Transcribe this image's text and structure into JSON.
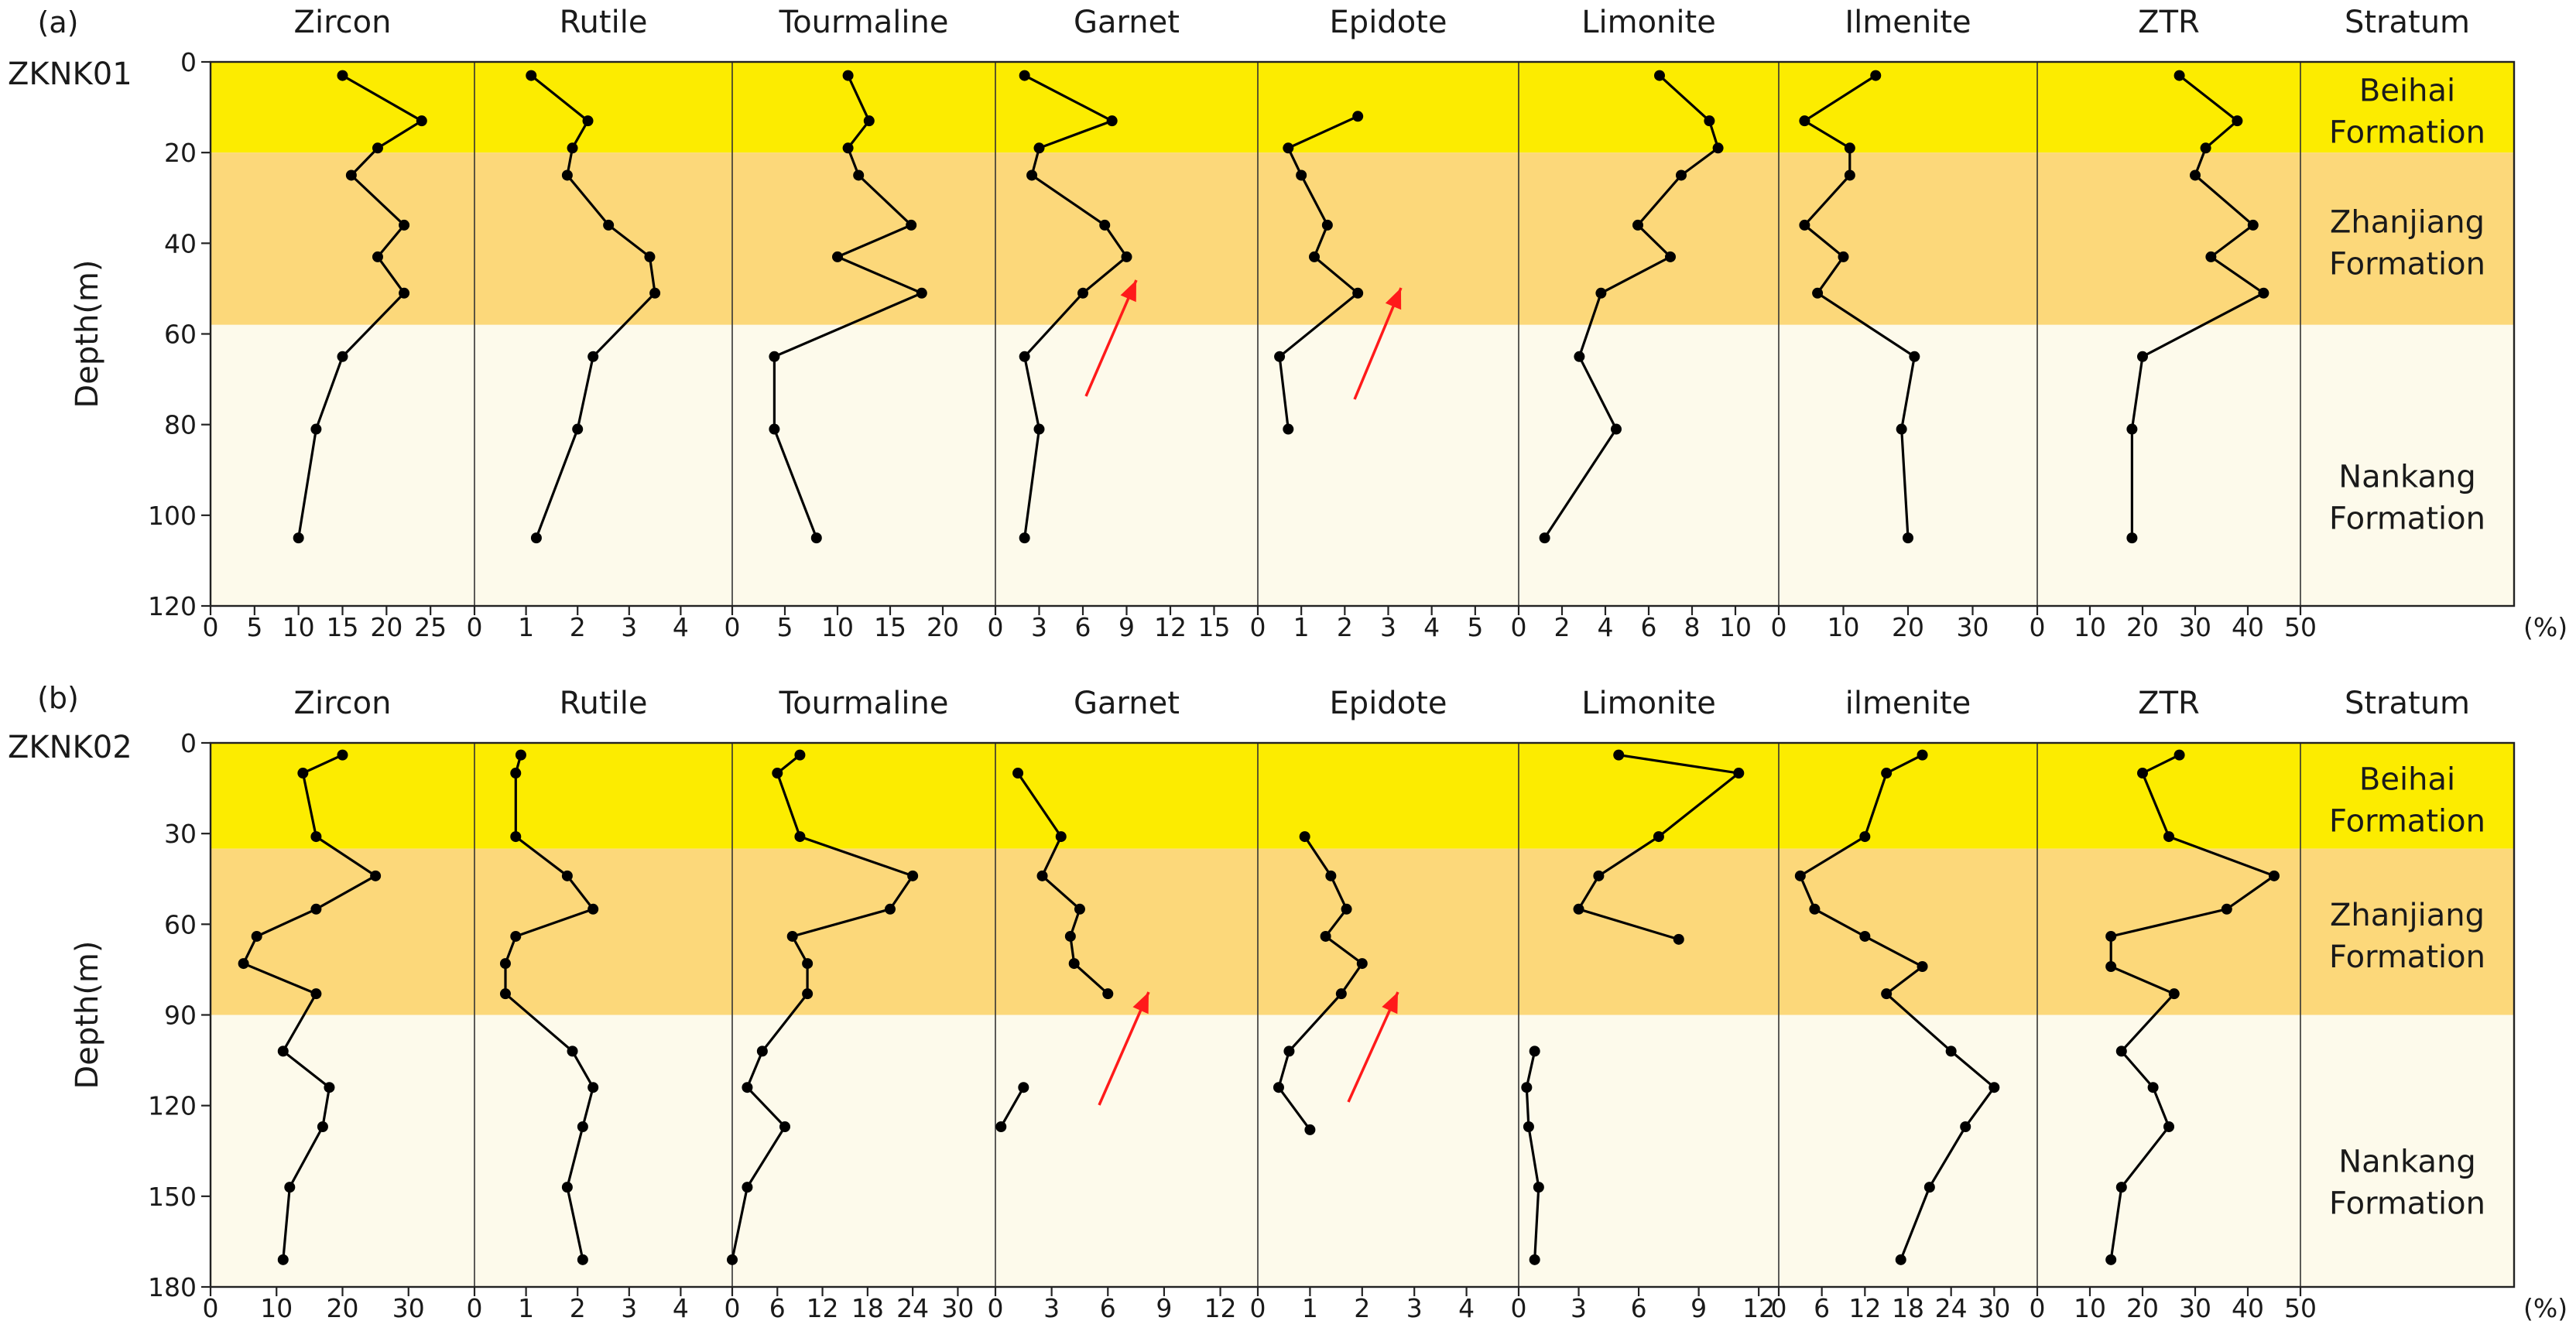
{
  "chart_data": [
    {
      "type": "line",
      "panel_label": "(a)",
      "well": "ZKNK01",
      "ylabel": "Depth(m)",
      "y_ticks": [
        0,
        20,
        40,
        60,
        80,
        100,
        120
      ],
      "ylim": [
        0,
        120
      ],
      "y_inverted": true,
      "unit_label": "(%)",
      "strata": [
        {
          "name_lines": [
            "Beihai",
            "Formation"
          ],
          "top": 0,
          "bottom": 20,
          "color": "#fcec00"
        },
        {
          "name_lines": [
            "Zhanjiang",
            "Formation"
          ],
          "top": 20,
          "bottom": 58,
          "color": "#fcd87a"
        },
        {
          "name_lines": [
            "Nankang",
            "Formation"
          ],
          "top": 58,
          "bottom": 120,
          "color": "#fdfaeb"
        }
      ],
      "stratum_header": "Stratum",
      "series": [
        {
          "name": "Zircon",
          "xlim": [
            0,
            30
          ],
          "x_ticks": [
            0,
            5,
            10,
            15,
            20,
            25
          ],
          "points": [
            [
              15,
              3
            ],
            [
              24,
              13
            ],
            [
              19,
              19
            ],
            [
              16,
              25
            ],
            [
              22,
              36
            ],
            [
              19,
              43
            ],
            [
              22,
              51
            ],
            [
              15,
              65
            ],
            [
              12,
              81
            ],
            [
              10,
              105
            ]
          ]
        },
        {
          "name": "Rutile",
          "xlim": [
            0,
            5
          ],
          "x_ticks": [
            0,
            1,
            2,
            3,
            4
          ],
          "points": [
            [
              1.1,
              3
            ],
            [
              2.2,
              13
            ],
            [
              1.9,
              19
            ],
            [
              1.8,
              25
            ],
            [
              2.6,
              36
            ],
            [
              3.4,
              43
            ],
            [
              3.5,
              51
            ],
            [
              2.3,
              65
            ],
            [
              2.0,
              81
            ],
            [
              1.2,
              105
            ]
          ]
        },
        {
          "name": "Tourmaline",
          "xlim": [
            0,
            25
          ],
          "x_ticks": [
            0,
            5,
            10,
            15,
            20
          ],
          "points": [
            [
              11,
              3
            ],
            [
              13,
              13
            ],
            [
              11,
              19
            ],
            [
              12,
              25
            ],
            [
              17,
              36
            ],
            [
              10,
              43
            ],
            [
              18,
              51
            ],
            [
              4,
              65
            ],
            [
              4,
              81
            ],
            [
              8,
              105
            ]
          ]
        },
        {
          "name": "Garnet",
          "xlim": [
            0,
            18
          ],
          "x_ticks": [
            0,
            3,
            6,
            9,
            12,
            15
          ],
          "points": [
            [
              2,
              3
            ],
            [
              8,
              13
            ],
            [
              3,
              19
            ],
            [
              2.5,
              25
            ],
            [
              7.5,
              36
            ],
            [
              9,
              43
            ],
            [
              6,
              51
            ],
            [
              2,
              65
            ],
            [
              3,
              81
            ],
            [
              2,
              105
            ]
          ]
        },
        {
          "name": "Epidote",
          "xlim": [
            0,
            6
          ],
          "x_ticks": [
            0,
            1,
            2,
            3,
            4,
            5
          ],
          "points": [
            [
              2.3,
              12
            ],
            [
              0.7,
              19
            ],
            [
              1,
              25
            ],
            [
              1.6,
              36
            ],
            [
              1.3,
              43
            ],
            [
              2.3,
              51
            ],
            [
              0.5,
              65
            ],
            [
              0.7,
              81
            ]
          ]
        },
        {
          "name": "Limonite",
          "xlim": [
            0,
            12
          ],
          "x_ticks": [
            0,
            2,
            4,
            6,
            8,
            10
          ],
          "points": [
            [
              6.5,
              3
            ],
            [
              8.8,
              13
            ],
            [
              9.2,
              19
            ],
            [
              7.5,
              25
            ],
            [
              5.5,
              36
            ],
            [
              7,
              43
            ],
            [
              3.8,
              51
            ],
            [
              2.8,
              65
            ],
            [
              4.5,
              81
            ],
            [
              1.2,
              105
            ]
          ]
        },
        {
          "name": "Ilmenite",
          "xlim": [
            0,
            40
          ],
          "x_ticks": [
            0,
            10,
            20,
            30
          ],
          "points": [
            [
              15,
              3
            ],
            [
              4,
              13
            ],
            [
              11,
              19
            ],
            [
              11,
              25
            ],
            [
              4,
              36
            ],
            [
              10,
              43
            ],
            [
              6,
              51
            ],
            [
              21,
              65
            ],
            [
              19,
              81
            ],
            [
              20,
              105
            ]
          ]
        },
        {
          "name": "ZTR",
          "xlim": [
            0,
            50
          ],
          "x_ticks": [
            0,
            10,
            20,
            30,
            40,
            50
          ],
          "points": [
            [
              27,
              3
            ],
            [
              38,
              13
            ],
            [
              32,
              19
            ],
            [
              30,
              25
            ],
            [
              41,
              36
            ],
            [
              33,
              43
            ],
            [
              43,
              51
            ],
            [
              20,
              65
            ],
            [
              18,
              81
            ],
            [
              18,
              105
            ]
          ]
        }
      ]
    },
    {
      "type": "line",
      "panel_label": "(b)",
      "well": "ZKNK02",
      "ylabel": "Depth(m)",
      "y_ticks": [
        0,
        30,
        60,
        90,
        120,
        150,
        180
      ],
      "ylim": [
        0,
        180
      ],
      "y_inverted": true,
      "unit_label": "(%)",
      "strata": [
        {
          "name_lines": [
            "Beihai",
            "Formation"
          ],
          "top": 0,
          "bottom": 35,
          "color": "#fcec00"
        },
        {
          "name_lines": [
            "Zhanjiang",
            "Formation"
          ],
          "top": 35,
          "bottom": 90,
          "color": "#fcd87a"
        },
        {
          "name_lines": [
            "Nankang",
            "Formation"
          ],
          "top": 90,
          "bottom": 180,
          "color": "#fdfaeb"
        }
      ],
      "stratum_header": "Stratum",
      "series": [
        {
          "name": "Zircon",
          "xlim": [
            0,
            40
          ],
          "x_ticks": [
            0,
            10,
            20,
            30
          ],
          "points": [
            [
              20,
              4
            ],
            [
              14,
              10
            ],
            [
              16,
              31
            ],
            [
              25,
              44
            ],
            [
              16,
              55
            ],
            [
              7,
              64
            ],
            [
              5,
              73
            ],
            [
              16,
              83
            ],
            [
              11,
              102
            ],
            [
              18,
              114
            ],
            [
              17,
              127
            ],
            [
              12,
              147
            ],
            [
              11,
              171
            ]
          ]
        },
        {
          "name": "Rutile",
          "xlim": [
            0,
            5
          ],
          "x_ticks": [
            0,
            1,
            2,
            3,
            4
          ],
          "points": [
            [
              0.9,
              4
            ],
            [
              0.8,
              10
            ],
            [
              0.8,
              31
            ],
            [
              1.8,
              44
            ],
            [
              2.3,
              55
            ],
            [
              0.8,
              64
            ],
            [
              0.6,
              73
            ],
            [
              0.6,
              83
            ],
            [
              1.9,
              102
            ],
            [
              2.3,
              114
            ],
            [
              2.1,
              127
            ],
            [
              1.8,
              147
            ],
            [
              2.1,
              171
            ]
          ]
        },
        {
          "name": "Tourmaline",
          "xlim": [
            0,
            35
          ],
          "x_ticks": [
            0,
            6,
            12,
            18,
            24,
            30
          ],
          "points": [
            [
              9,
              4
            ],
            [
              6,
              10
            ],
            [
              9,
              31
            ],
            [
              24,
              44
            ],
            [
              21,
              55
            ],
            [
              8,
              64
            ],
            [
              10,
              73
            ],
            [
              10,
              83
            ],
            [
              4,
              102
            ],
            [
              2,
              114
            ],
            [
              7,
              127
            ],
            [
              2,
              147
            ],
            [
              0,
              171
            ]
          ]
        },
        {
          "name": "Garnet",
          "xlim": [
            0,
            14
          ],
          "x_ticks": [
            0,
            3,
            6,
            9,
            12
          ],
          "points": [
            [
              1.2,
              10
            ],
            [
              3.5,
              31
            ],
            [
              2.5,
              44
            ],
            [
              4.5,
              55
            ],
            [
              4,
              64
            ],
            [
              4.2,
              73
            ],
            [
              6,
              83
            ]
          ],
          "points_b": [
            [
              1.5,
              114
            ],
            [
              0.3,
              127
            ]
          ]
        },
        {
          "name": "Epidote",
          "xlim": [
            0,
            5
          ],
          "x_ticks": [
            0,
            1,
            2,
            3,
            4
          ],
          "points": [
            [
              0.9,
              31
            ],
            [
              1.4,
              44
            ],
            [
              1.7,
              55
            ],
            [
              1.3,
              64
            ],
            [
              2,
              73
            ],
            [
              1.6,
              83
            ],
            [
              0.6,
              102
            ],
            [
              0.4,
              114
            ],
            [
              1,
              128
            ]
          ]
        },
        {
          "name": "Limonite",
          "xlim": [
            0,
            13
          ],
          "x_ticks": [
            0,
            3,
            6,
            9,
            12
          ],
          "points": [
            [
              5,
              4
            ],
            [
              11,
              10
            ],
            [
              7,
              31
            ],
            [
              4,
              44
            ],
            [
              3,
              55
            ],
            [
              8,
              65
            ]
          ],
          "points_b": [
            [
              0.8,
              102
            ],
            [
              0.4,
              114
            ],
            [
              0.5,
              127
            ],
            [
              1,
              147
            ],
            [
              0.8,
              171
            ]
          ]
        },
        {
          "name": "ilmenite",
          "xlim": [
            0,
            36
          ],
          "x_ticks": [
            0,
            6,
            12,
            18,
            24,
            30
          ],
          "points": [
            [
              20,
              4
            ],
            [
              15,
              10
            ],
            [
              12,
              31
            ],
            [
              3,
              44
            ],
            [
              5,
              55
            ],
            [
              12,
              64
            ],
            [
              20,
              74
            ],
            [
              15,
              83
            ],
            [
              24,
              102
            ],
            [
              30,
              114
            ],
            [
              26,
              127
            ],
            [
              21,
              147
            ],
            [
              17,
              171
            ]
          ]
        },
        {
          "name": "ZTR",
          "xlim": [
            0,
            50
          ],
          "x_ticks": [
            0,
            10,
            20,
            30,
            40,
            50
          ],
          "points": [
            [
              27,
              4
            ],
            [
              20,
              10
            ],
            [
              25,
              31
            ],
            [
              45,
              44
            ],
            [
              36,
              55
            ],
            [
              14,
              64
            ],
            [
              14,
              74
            ],
            [
              26,
              83
            ],
            [
              16,
              102
            ],
            [
              22,
              114
            ],
            [
              25,
              127
            ],
            [
              16,
              147
            ],
            [
              14,
              171
            ]
          ]
        }
      ]
    }
  ]
}
